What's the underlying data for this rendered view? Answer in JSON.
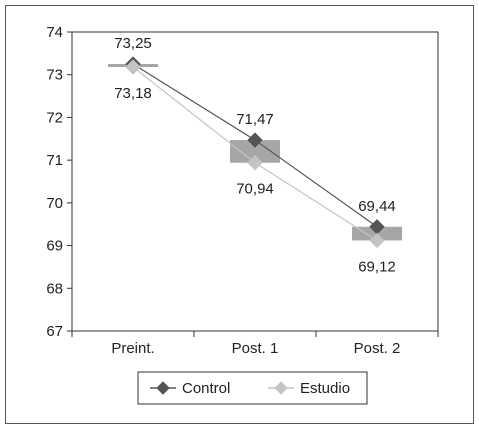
{
  "chart_data": {
    "type": "line",
    "categories": [
      "Preint.",
      "Post. 1",
      "Post. 2"
    ],
    "ylim": [
      67,
      74
    ],
    "yticks": [
      "67",
      "68",
      "69",
      "70",
      "71",
      "72",
      "73",
      "74"
    ],
    "series": [
      {
        "name": "Control",
        "values": [
          73.25,
          71.47,
          69.44
        ],
        "labels": [
          "73,25",
          "71,47",
          "69,44"
        ],
        "color": "#555555",
        "marker": "diamond"
      },
      {
        "name": "Estudio",
        "values": [
          73.18,
          70.94,
          69.12
        ],
        "labels": [
          "73,18",
          "70,94",
          "69,12"
        ],
        "color": "#c4c4c4",
        "marker": "diamond"
      }
    ],
    "range_bars": {
      "color": "#a6a6a6"
    },
    "legend": {
      "placement": "bottom"
    },
    "grid": false,
    "title": "",
    "xlabel": "",
    "ylabel": ""
  }
}
